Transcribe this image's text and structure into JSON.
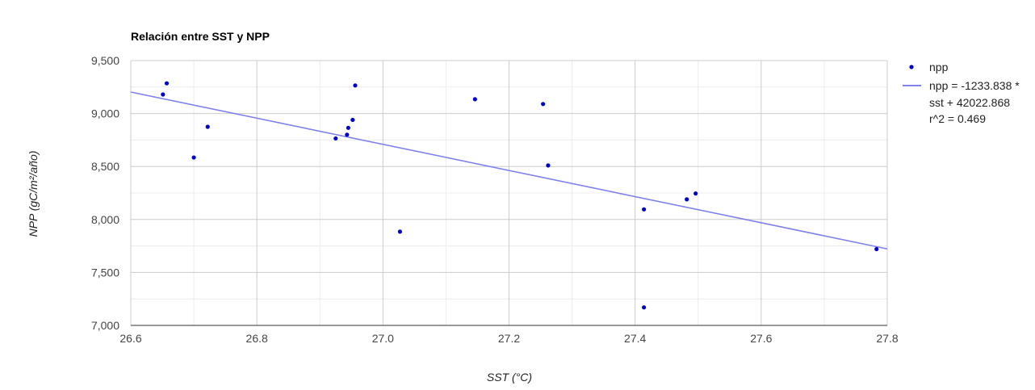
{
  "chart_data": {
    "type": "scatter",
    "title": "Relación entre SST y NPP",
    "xlabel": "SST (°C)",
    "ylabel": "NPP (gC/m²/año)",
    "xlim": [
      26.6,
      27.8
    ],
    "ylim": [
      7000,
      9500
    ],
    "x_ticks": [
      26.6,
      26.8,
      27.0,
      27.2,
      27.4,
      27.6,
      27.8
    ],
    "x_tick_labels": [
      "26.6",
      "26.8",
      "27.0",
      "27.2",
      "27.4",
      "27.6",
      "27.8"
    ],
    "y_ticks": [
      7000,
      7500,
      8000,
      8500,
      9000,
      9500
    ],
    "y_tick_labels": [
      "7,000",
      "7,500",
      "8,000",
      "8,500",
      "9,000",
      "9,500"
    ],
    "grid": true,
    "legend_position": "right",
    "series": [
      {
        "name": "npp",
        "color": "#0000cc",
        "points": [
          [
            26.651,
            9180
          ],
          [
            26.657,
            9285
          ],
          [
            26.7,
            8585
          ],
          [
            26.722,
            8875
          ],
          [
            26.925,
            8765
          ],
          [
            26.943,
            8800
          ],
          [
            26.945,
            8865
          ],
          [
            26.952,
            8940
          ],
          [
            26.956,
            9265
          ],
          [
            27.027,
            7885
          ],
          [
            27.146,
            9135
          ],
          [
            27.254,
            9090
          ],
          [
            27.262,
            8510
          ],
          [
            27.414,
            8095
          ],
          [
            27.414,
            7170
          ],
          [
            27.482,
            8190
          ],
          [
            27.496,
            8245
          ],
          [
            27.783,
            7720
          ]
        ]
      }
    ],
    "trendline": {
      "color": "#8080ee",
      "slope": -1233.838,
      "intercept": 42022.868,
      "legend_lines": [
        "npp = -1233.838 *",
        "sst + 42022.868",
        "r^2 = 0.469"
      ]
    }
  }
}
